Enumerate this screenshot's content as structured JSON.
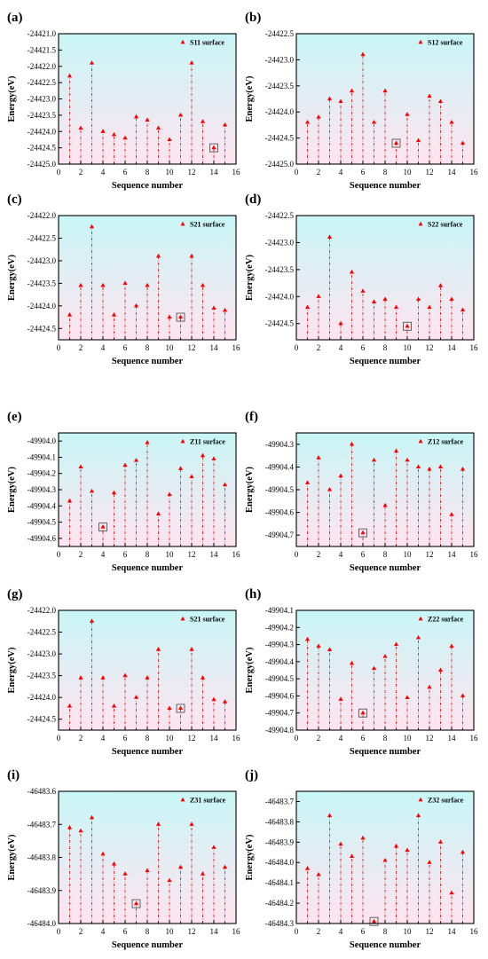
{
  "colors": {
    "marker": "#ff0000",
    "stem": "#dd2222",
    "bg_top": "#c8f6f6",
    "bg_bottom": "#ffe4f0",
    "axis": "#000000"
  },
  "chart_data": [
    {
      "panel": "(a)",
      "type": "scatter",
      "legend": "S11 surface",
      "legend_position": "top-right",
      "xlabel": "Sequence number",
      "ylabel": "Energy(eV)",
      "xlim": [
        0,
        16
      ],
      "ylim": [
        -24425.0,
        -24421.0
      ],
      "xticks": [
        0,
        2,
        4,
        6,
        8,
        10,
        12,
        14,
        16
      ],
      "yticks": [
        -24421.0,
        -24421.5,
        -24422.0,
        -24422.5,
        -24423.0,
        -24423.5,
        -24424.0,
        -24424.5,
        -24425.0
      ],
      "ytick_labels": [
        "-24421.0",
        "-24421.5",
        "-24422.0",
        "-24422.5",
        "-24423.0",
        "-24423.5",
        "-24424.0",
        "-24424.5",
        "-24425.0"
      ],
      "x": [
        1,
        2,
        3,
        4,
        5,
        6,
        7,
        8,
        9,
        10,
        11,
        12,
        13,
        14,
        15
      ],
      "y": [
        -24422.3,
        -24423.9,
        -24421.9,
        -24424.0,
        -24424.1,
        -24424.2,
        -24423.55,
        -24423.65,
        -24423.9,
        -24424.25,
        -24423.5,
        -24421.9,
        -24423.7,
        -24424.5,
        -24423.8
      ],
      "highlight_index": 13
    },
    {
      "panel": "(b)",
      "type": "scatter",
      "legend": "S12 surface",
      "legend_position": "top-right",
      "xlabel": "Sequence number",
      "ylabel": "Energy(eV)",
      "xlim": [
        0,
        16
      ],
      "ylim": [
        -24425.0,
        -24422.5
      ],
      "xticks": [
        0,
        2,
        4,
        6,
        8,
        10,
        12,
        14,
        16
      ],
      "yticks": [
        -24422.5,
        -24423.0,
        -24423.5,
        -24424.0,
        -24424.5,
        -24425.0
      ],
      "ytick_labels": [
        "-24422.5",
        "-24423.0",
        "-24423.5",
        "-24424.0",
        "-24424.5",
        "-24425.0"
      ],
      "x": [
        1,
        2,
        3,
        4,
        5,
        6,
        7,
        8,
        9,
        10,
        11,
        12,
        13,
        14,
        15
      ],
      "y": [
        -24424.2,
        -24424.1,
        -24423.75,
        -24423.8,
        -24423.6,
        -24422.9,
        -24424.2,
        -24423.6,
        -24424.6,
        -24424.05,
        -24424.55,
        -24423.7,
        -24423.8,
        -24424.2,
        -24424.6
      ],
      "highlight_index": 8
    },
    {
      "panel": "(c)",
      "type": "scatter",
      "legend": "S21 surface",
      "legend_position": "top-right",
      "xlabel": "Sequence number",
      "ylabel": "Energy(eV)",
      "xlim": [
        0,
        16
      ],
      "ylim": [
        -24424.75,
        -24422.0
      ],
      "xticks": [
        0,
        2,
        4,
        6,
        8,
        10,
        12,
        14,
        16
      ],
      "yticks": [
        -24422.0,
        -24422.5,
        -24423.0,
        -24423.5,
        -24424.0,
        -24424.5
      ],
      "ytick_labels": [
        "-24422.0",
        "-24422.5",
        "-24423.0",
        "-24423.5",
        "-24424.0",
        "-24424.5"
      ],
      "x": [
        1,
        2,
        3,
        4,
        5,
        6,
        7,
        8,
        9,
        10,
        11,
        12,
        13,
        14,
        15
      ],
      "y": [
        -24424.2,
        -24423.55,
        -24422.25,
        -24423.55,
        -24424.2,
        -24423.5,
        -24424.0,
        -24423.55,
        -24422.9,
        -24424.25,
        -24424.25,
        -24422.9,
        -24423.55,
        -24424.05,
        -24424.1
      ],
      "highlight_index": 10
    },
    {
      "panel": "(d)",
      "type": "scatter",
      "legend": "S22 surface",
      "legend_position": "top-right",
      "xlabel": "Sequence number",
      "ylabel": "Energy(eV)",
      "xlim": [
        0,
        16
      ],
      "ylim": [
        -24424.8,
        -24422.5
      ],
      "xticks": [
        0,
        2,
        4,
        6,
        8,
        10,
        12,
        14,
        16
      ],
      "yticks": [
        -24422.5,
        -24423.0,
        -24423.5,
        -24424.0,
        -24424.5
      ],
      "ytick_labels": [
        "-24422.5",
        "-24423.0",
        "-24423.5",
        "-24424.0",
        "-24424.5"
      ],
      "x": [
        1,
        2,
        3,
        4,
        5,
        6,
        7,
        8,
        9,
        10,
        11,
        12,
        13,
        14,
        15
      ],
      "y": [
        -24424.2,
        -24424.0,
        -24422.9,
        -24424.5,
        -24423.55,
        -24423.9,
        -24424.1,
        -24424.05,
        -24424.2,
        -24424.55,
        -24424.05,
        -24424.2,
        -24423.8,
        -24424.05,
        -24424.25
      ],
      "highlight_index": 9
    },
    {
      "panel": "(e)",
      "type": "scatter",
      "legend": "Z11 surface",
      "legend_position": "top-right",
      "xlabel": "Sequence number",
      "ylabel": "Energy(eV)",
      "xlim": [
        0,
        16
      ],
      "ylim": [
        -49904.65,
        -49903.95
      ],
      "xticks": [
        0,
        2,
        4,
        6,
        8,
        10,
        12,
        14,
        16
      ],
      "yticks": [
        -49904.0,
        -49904.1,
        -49904.2,
        -49904.3,
        -49904.4,
        -49904.5,
        -49904.6
      ],
      "ytick_labels": [
        "-49904.0",
        "-49904.1",
        "-49904.2",
        "-49904.3",
        "-49904.4",
        "-49904.5",
        "-49904.6"
      ],
      "x": [
        1,
        2,
        3,
        4,
        5,
        6,
        7,
        8,
        9,
        10,
        11,
        12,
        13,
        14,
        15
      ],
      "y": [
        -49904.37,
        -49904.16,
        -49904.31,
        -49904.53,
        -49904.32,
        -49904.15,
        -49904.12,
        -49904.01,
        -49904.45,
        -49904.33,
        -49904.17,
        -49904.22,
        -49904.09,
        -49904.11,
        -49904.27
      ],
      "highlight_index": 3
    },
    {
      "panel": "(f)",
      "type": "scatter",
      "legend": "Z12 surface",
      "legend_position": "top-right",
      "xlabel": "Sequence number",
      "ylabel": "Energy(eV)",
      "xlim": [
        0,
        16
      ],
      "ylim": [
        -49904.75,
        -49904.25
      ],
      "xticks": [
        0,
        2,
        4,
        6,
        8,
        10,
        12,
        14,
        16
      ],
      "yticks": [
        -49904.3,
        -49904.4,
        -49904.5,
        -49904.6,
        -49904.7
      ],
      "ytick_labels": [
        "-49904.3",
        "-49904.4",
        "-49904.5",
        "-49904.6",
        "-49904.7"
      ],
      "x": [
        1,
        2,
        3,
        4,
        5,
        6,
        7,
        8,
        9,
        10,
        11,
        12,
        13,
        14,
        15
      ],
      "y": [
        -49904.47,
        -49904.36,
        -49904.5,
        -49904.44,
        -49904.3,
        -49904.69,
        -49904.37,
        -49904.57,
        -49904.33,
        -49904.37,
        -49904.4,
        -49904.41,
        -49904.4,
        -49904.61,
        -49904.41
      ],
      "highlight_index": 5
    },
    {
      "panel": "(g)",
      "type": "scatter",
      "legend": "S21 surface",
      "legend_position": "top-right",
      "xlabel": "Sequence number",
      "ylabel": "Energy(eV)",
      "xlim": [
        0,
        16
      ],
      "ylim": [
        -24424.75,
        -24422.0
      ],
      "xticks": [
        0,
        2,
        4,
        6,
        8,
        10,
        12,
        14,
        16
      ],
      "yticks": [
        -24422.0,
        -24422.5,
        -24423.0,
        -24423.5,
        -24424.0,
        -24424.5
      ],
      "ytick_labels": [
        "-24422.0",
        "-24422.5",
        "-24423.0",
        "-24423.5",
        "-24424.0",
        "-24424.5"
      ],
      "x": [
        1,
        2,
        3,
        4,
        5,
        6,
        7,
        8,
        9,
        10,
        11,
        12,
        13,
        14,
        15
      ],
      "y": [
        -24424.2,
        -24423.55,
        -24422.25,
        -24423.55,
        -24424.2,
        -24423.5,
        -24424.0,
        -24423.55,
        -24422.9,
        -24424.25,
        -24424.25,
        -24422.9,
        -24423.55,
        -24424.05,
        -24424.1
      ],
      "highlight_index": 10
    },
    {
      "panel": "(h)",
      "type": "scatter",
      "legend": "Z22 surface",
      "legend_position": "top-right",
      "xlabel": "Sequence number",
      "ylabel": "Energy(eV)",
      "xlim": [
        0,
        16
      ],
      "ylim": [
        -49904.8,
        -49904.1
      ],
      "xticks": [
        0,
        2,
        4,
        6,
        8,
        10,
        12,
        14,
        16
      ],
      "yticks": [
        -49904.1,
        -49904.2,
        -49904.3,
        -49904.4,
        -49904.5,
        -49904.6,
        -49904.7,
        -49904.8
      ],
      "ytick_labels": [
        "-49904.1",
        "-49904.2",
        "-49904.3",
        "-49904.4",
        "-49904.5",
        "-49904.6",
        "-49904.7",
        "-49904.8"
      ],
      "x": [
        1,
        2,
        3,
        4,
        5,
        6,
        7,
        8,
        9,
        10,
        11,
        12,
        13,
        14,
        15
      ],
      "y": [
        -49904.27,
        -49904.31,
        -49904.33,
        -49904.62,
        -49904.41,
        -49904.7,
        -49904.44,
        -49904.37,
        -49904.3,
        -49904.61,
        -49904.26,
        -49904.55,
        -49904.45,
        -49904.31,
        -49904.6
      ],
      "highlight_index": 5
    },
    {
      "panel": "(i)",
      "type": "scatter",
      "legend": "Z31 surface",
      "legend_position": "top-right",
      "xlabel": "Sequence number",
      "ylabel": "Energy(eV)",
      "xlim": [
        0,
        16
      ],
      "ylim": [
        -46484.0,
        -46483.6
      ],
      "xticks": [
        0,
        2,
        4,
        6,
        8,
        10,
        12,
        14,
        16
      ],
      "yticks": [
        -46483.6,
        -46483.7,
        -46483.8,
        -46483.9,
        -46484.0
      ],
      "ytick_labels": [
        "-46483.6",
        "-46483.7",
        "-46483.8",
        "-46483.9",
        "-46484.0"
      ],
      "x": [
        1,
        2,
        3,
        4,
        5,
        6,
        7,
        8,
        9,
        10,
        11,
        12,
        13,
        14,
        15
      ],
      "y": [
        -46483.71,
        -46483.72,
        -46483.68,
        -46483.79,
        -46483.82,
        -46483.85,
        -46483.94,
        -46483.84,
        -46483.7,
        -46483.87,
        -46483.83,
        -46483.7,
        -46483.85,
        -46483.77,
        -46483.83
      ],
      "highlight_index": 6
    },
    {
      "panel": "(j)",
      "type": "scatter",
      "legend": "Z32 surface",
      "legend_position": "top-right",
      "xlabel": "Sequence number",
      "ylabel": "Energy(eV)",
      "xlim": [
        0,
        16
      ],
      "ylim": [
        -46484.3,
        -46483.65
      ],
      "xticks": [
        0,
        2,
        4,
        6,
        8,
        10,
        12,
        14,
        16
      ],
      "yticks": [
        -46483.7,
        -46483.8,
        -46483.9,
        -46484.0,
        -46484.1,
        -46484.2,
        -46484.3
      ],
      "ytick_labels": [
        "-46483.7",
        "-46483.8",
        "-46483.9",
        "-46484.0",
        "-46484.1",
        "-46484.2",
        "-46484.3"
      ],
      "x": [
        1,
        2,
        3,
        4,
        5,
        6,
        7,
        8,
        9,
        10,
        11,
        12,
        13,
        14,
        15
      ],
      "y": [
        -46484.03,
        -46484.06,
        -46483.77,
        -46483.91,
        -46483.97,
        -46483.88,
        -46484.29,
        -46483.99,
        -46483.92,
        -46483.94,
        -46483.77,
        -46484.0,
        -46483.9,
        -46484.15,
        -46483.95
      ],
      "highlight_index": 6
    }
  ]
}
